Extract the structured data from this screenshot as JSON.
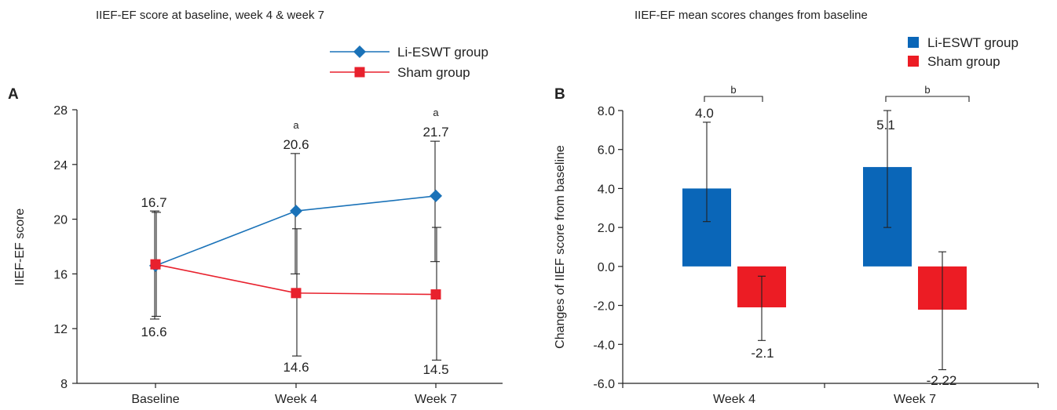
{
  "chart_data": [
    {
      "panel": "A",
      "type": "line",
      "title": "IIEF-EF score at baseline, week 4 & week 7",
      "xlabel": "",
      "ylabel": "IIEF-EF score",
      "ylim": [
        8,
        28
      ],
      "yticks": [
        "8",
        "12",
        "16",
        "20",
        "24",
        "28"
      ],
      "categories": [
        "Baseline",
        "Week 4",
        "Week 7"
      ],
      "legend_position": "top-right",
      "series": [
        {
          "name": "Li-ESWT group",
          "color": "#1a72b8",
          "marker": "diamond",
          "values": [
            16.6,
            20.6,
            21.7
          ],
          "err_low": [
            12.7,
            16.0,
            16.9
          ],
          "err_high": [
            20.6,
            24.8,
            25.7
          ],
          "labels": [
            "16.6",
            "20.6",
            "21.7"
          ]
        },
        {
          "name": "Sham group",
          "color": "#e8212d",
          "marker": "square",
          "values": [
            16.7,
            14.6,
            14.5
          ],
          "err_low": [
            12.9,
            10.0,
            9.7
          ],
          "err_high": [
            20.5,
            19.3,
            19.4
          ],
          "labels": [
            "16.7",
            "14.6",
            "14.5"
          ]
        }
      ],
      "annotations": [
        "",
        "a",
        "a"
      ]
    },
    {
      "panel": "B",
      "type": "bar",
      "title": "IIEF-EF mean scores changes from baseline",
      "xlabel": "",
      "ylabel": "Changes of IIEF score from baseline",
      "ylim": [
        -6,
        8
      ],
      "yticks": [
        "-6.0",
        "-4.0",
        "-2.0",
        "0.0",
        "2.0",
        "4.0",
        "6.0",
        "8.0"
      ],
      "categories": [
        "Week 4",
        "Week 7"
      ],
      "legend_position": "top-right",
      "series": [
        {
          "name": "Li-ESWT group",
          "color": "#0a66b8",
          "values": [
            4.0,
            5.1
          ],
          "err_low": [
            2.3,
            2.0
          ],
          "err_high": [
            7.4,
            8.0
          ],
          "labels": [
            "4.0",
            "5.1"
          ]
        },
        {
          "name": "Sham group",
          "color": "#ec1c24",
          "values": [
            -2.1,
            -2.22
          ],
          "err_low": [
            -3.8,
            -5.3
          ],
          "err_high": [
            -0.5,
            0.75
          ],
          "labels": [
            "-2.1",
            "-2.22"
          ]
        }
      ],
      "annotations": [
        "b",
        "b"
      ]
    }
  ]
}
